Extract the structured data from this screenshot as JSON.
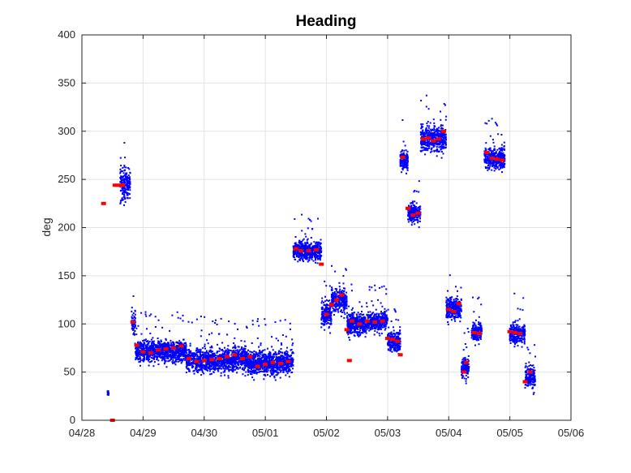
{
  "chart_data": {
    "type": "scatter",
    "title": "Heading",
    "xlabel": "",
    "ylabel": "deg",
    "xlim": [
      "04/28",
      "05/06"
    ],
    "ylim": [
      0,
      400
    ],
    "xticks": [
      "04/28",
      "04/29",
      "04/30",
      "05/01",
      "05/02",
      "05/03",
      "05/04",
      "05/05",
      "05/06"
    ],
    "yticks": [
      0,
      50,
      100,
      150,
      200,
      250,
      300,
      350,
      400
    ],
    "grid": true,
    "colors": {
      "samples": "#0000ff",
      "averages": "#ff0000"
    },
    "series": [
      {
        "marker": "dot",
        "color": "#0000ff",
        "segments": [
          {
            "x_start": "04/28 10:00",
            "x_end": "04/28 10:30",
            "y_center": 28,
            "spread": 2
          },
          {
            "x_start": "04/28 15:00",
            "x_end": "04/28 19:00",
            "y_center": 245,
            "spread": 15
          },
          {
            "x_start": "04/28 19:30",
            "x_end": "04/28 21:00",
            "y_center": 100,
            "spread": 12
          },
          {
            "x_start": "04/28 21:00",
            "x_end": "04/29 17:00",
            "y_center": 72,
            "spread": 10
          },
          {
            "x_start": "04/29 17:00",
            "x_end": "04/30 12:00",
            "y_center": 62,
            "spread": 11
          },
          {
            "x_start": "04/30 12:00",
            "x_end": "04/30 17:00",
            "y_center": 64,
            "spread": 10
          },
          {
            "x_start": "04/30 17:00",
            "x_end": "05/01 11:00",
            "y_center": 60,
            "spread": 11
          },
          {
            "x_start": "05/01 11:00",
            "x_end": "05/01 22:00",
            "y_center": 176,
            "spread": 9
          },
          {
            "x_start": "05/01 22:00",
            "x_end": "05/02 02:00",
            "y_center": 110,
            "spread": 12
          },
          {
            "x_start": "05/02 02:00",
            "x_end": "05/02 08:00",
            "y_center": 124,
            "spread": 10
          },
          {
            "x_start": "05/02 08:00",
            "x_end": "05/02 16:00",
            "y_center": 100,
            "spread": 10
          },
          {
            "x_start": "05/02 16:00",
            "x_end": "05/03 00:00",
            "y_center": 103,
            "spread": 9
          },
          {
            "x_start": "05/03 00:00",
            "x_end": "05/03 05:00",
            "y_center": 82,
            "spread": 9
          },
          {
            "x_start": "05/03 05:00",
            "x_end": "05/03 08:00",
            "y_center": 270,
            "spread": 10
          },
          {
            "x_start": "05/03 08:00",
            "x_end": "05/03 13:00",
            "y_center": 215,
            "spread": 9
          },
          {
            "x_start": "05/03 13:00",
            "x_end": "05/03 23:00",
            "y_center": 292,
            "spread": 11
          },
          {
            "x_start": "05/03 23:00",
            "x_end": "05/04 05:00",
            "y_center": 116,
            "spread": 10
          },
          {
            "x_start": "05/04 05:00",
            "x_end": "05/04 08:00",
            "y_center": 55,
            "spread": 10
          },
          {
            "x_start": "05/04 09:00",
            "x_end": "05/04 13:00",
            "y_center": 92,
            "spread": 9
          },
          {
            "x_start": "05/04 14:00",
            "x_end": "05/04 22:00",
            "y_center": 272,
            "spread": 10
          },
          {
            "x_start": "05/05 00:00",
            "x_end": "05/05 06:00",
            "y_center": 90,
            "spread": 10
          },
          {
            "x_start": "05/05 06:00",
            "x_end": "05/05 10:00",
            "y_center": 45,
            "spread": 10
          }
        ]
      },
      {
        "marker": "square",
        "color": "#ff0000",
        "points": [
          [
            "04/28 08:30",
            225
          ],
          [
            "04/28 12:00",
            0
          ],
          [
            "04/28 13:00",
            244
          ],
          [
            "04/28 14:00",
            244
          ],
          [
            "04/28 15:00",
            244
          ],
          [
            "04/28 16:00",
            244
          ],
          [
            "04/28 20:00",
            102
          ],
          [
            "04/28 21:30",
            78
          ],
          [
            "04/29 00:00",
            71
          ],
          [
            "04/29 03:00",
            70
          ],
          [
            "04/29 06:00",
            73
          ],
          [
            "04/29 09:00",
            74
          ],
          [
            "04/29 12:00",
            75
          ],
          [
            "04/29 15:00",
            77
          ],
          [
            "04/29 18:00",
            64
          ],
          [
            "04/29 21:00",
            61
          ],
          [
            "04/30 00:00",
            62
          ],
          [
            "04/30 03:00",
            63
          ],
          [
            "04/30 06:00",
            64
          ],
          [
            "04/30 09:00",
            66
          ],
          [
            "04/30 12:00",
            68
          ],
          [
            "04/30 15:00",
            64
          ],
          [
            "04/30 18:00",
            66
          ],
          [
            "04/30 21:00",
            56
          ],
          [
            "05/01 00:00",
            58
          ],
          [
            "05/01 03:00",
            60
          ],
          [
            "05/01 06:00",
            59
          ],
          [
            "05/01 09:00",
            61
          ],
          [
            "05/01 12:00",
            178
          ],
          [
            "05/01 14:00",
            176
          ],
          [
            "05/01 17:00",
            176
          ],
          [
            "05/01 20:00",
            177
          ],
          [
            "05/01 22:00",
            162
          ],
          [
            "05/02 00:00",
            110
          ],
          [
            "05/02 02:00",
            120
          ],
          [
            "05/02 04:00",
            125
          ],
          [
            "05/02 06:00",
            130
          ],
          [
            "05/02 08:00",
            94
          ],
          [
            "05/02 09:00",
            62
          ],
          [
            "05/02 10:00",
            103
          ],
          [
            "05/02 13:00",
            100
          ],
          [
            "05/02 16:00",
            103
          ],
          [
            "05/02 19:00",
            102
          ],
          [
            "05/02 22:00",
            103
          ],
          [
            "05/03 00:00",
            85
          ],
          [
            "05/03 02:00",
            84
          ],
          [
            "05/03 04:00",
            82
          ],
          [
            "05/03 05:00",
            68
          ],
          [
            "05/03 06:00",
            273
          ],
          [
            "05/03 08:00",
            220
          ],
          [
            "05/03 10:00",
            213
          ],
          [
            "05/03 12:00",
            215
          ],
          [
            "05/03 14:00",
            292
          ],
          [
            "05/03 16:00",
            293
          ],
          [
            "05/03 18:00",
            290
          ],
          [
            "05/03 20:00",
            292
          ],
          [
            "05/03 22:00",
            300
          ],
          [
            "05/04 00:00",
            115
          ],
          [
            "05/04 02:00",
            113
          ],
          [
            "05/04 04:00",
            121
          ],
          [
            "05/04 06:00",
            50
          ],
          [
            "05/04 07:00",
            60
          ],
          [
            "05/04 10:00",
            91
          ],
          [
            "05/04 12:00",
            90
          ],
          [
            "05/04 15:00",
            278
          ],
          [
            "05/04 17:00",
            272
          ],
          [
            "05/04 19:00",
            271
          ],
          [
            "05/04 21:00",
            270
          ],
          [
            "05/05 00:00",
            92
          ],
          [
            "05/05 02:00",
            91
          ],
          [
            "05/05 04:00",
            90
          ],
          [
            "05/05 06:00",
            40
          ],
          [
            "05/05 08:00",
            50
          ]
        ]
      }
    ]
  }
}
